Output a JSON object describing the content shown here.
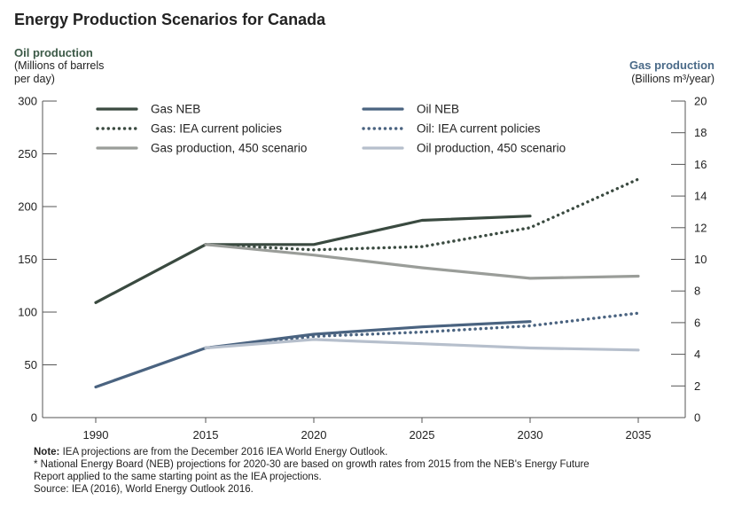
{
  "title": "Energy Production Scenarios for Canada",
  "left_axis": {
    "title": "Oil production",
    "unit_line1": "(Millions of barrels",
    "unit_line2": "per day)"
  },
  "right_axis": {
    "title": "Gas production",
    "unit": "(Billions m³/year)"
  },
  "notes": {
    "note_label": "Note:",
    "note_text": " IEA projections are from the December 2016 IEA World Energy Outlook.",
    "line2": "* National Energy Board (NEB) projections for 2020-30 are based on growth rates from 2015 from the NEB's Energy Future",
    "line3": "Report applied to the same starting point as the IEA projections.",
    "line4": "Source: IEA (2016), World Energy Outlook 2016."
  },
  "colors": {
    "gas": "#3a4a40",
    "gas450": "#9a9d99",
    "oil": "#4a6380",
    "oil450": "#b6bfcc"
  },
  "chart_data": {
    "type": "line",
    "title": "Energy Production Scenarios for Canada",
    "categories": [
      "1990",
      "2015",
      "2020",
      "2025",
      "2030",
      "2035"
    ],
    "y_left": {
      "label": "Oil production",
      "lim": [
        0,
        300
      ],
      "ticks": [
        "0",
        "50",
        "100",
        "150",
        "200",
        "250",
        "300"
      ]
    },
    "y_right": {
      "label": "Gas production",
      "lim": [
        0,
        20
      ],
      "ticks": [
        "0",
        "2",
        "4",
        "6",
        "8",
        "10",
        "12",
        "14",
        "16",
        "18",
        "20"
      ]
    },
    "legend_position": "top",
    "series": [
      {
        "name": "Gas NEB",
        "axis": "left",
        "style": "solid",
        "color": "#3a4a40",
        "x": [
          "1990",
          "2015",
          "2020",
          "2025",
          "2030"
        ],
        "values": [
          109,
          164,
          164,
          187,
          191
        ]
      },
      {
        "name": "Oil NEB",
        "axis": "left",
        "style": "solid",
        "color": "#4a6380",
        "x": [
          "1990",
          "2015",
          "2020",
          "2025",
          "2030"
        ],
        "values": [
          29,
          66,
          79,
          86,
          91
        ]
      },
      {
        "name": "Gas: IEA current policies",
        "axis": "left",
        "style": "dotted",
        "color": "#3a4a40",
        "x": [
          "2015",
          "2020",
          "2025",
          "2030",
          "2035"
        ],
        "values": [
          164,
          159,
          162,
          180,
          226
        ]
      },
      {
        "name": "Oil: IEA current policies",
        "axis": "left",
        "style": "dotted",
        "color": "#4a6380",
        "x": [
          "2015",
          "2020",
          "2025",
          "2030",
          "2035"
        ],
        "values": [
          66,
          77,
          81,
          87,
          99
        ]
      },
      {
        "name": "Gas production, 450 scenario",
        "axis": "left",
        "style": "solid",
        "color": "#9a9d99",
        "x": [
          "2015",
          "2020",
          "2025",
          "2030",
          "2035"
        ],
        "values": [
          164,
          154,
          142,
          132,
          134
        ]
      },
      {
        "name": "Oil production, 450 scenario",
        "axis": "left",
        "style": "solid",
        "color": "#b6bfcc",
        "x": [
          "2015",
          "2020",
          "2025",
          "2030",
          "2035"
        ],
        "values": [
          66,
          74,
          70,
          66,
          64
        ]
      }
    ]
  }
}
